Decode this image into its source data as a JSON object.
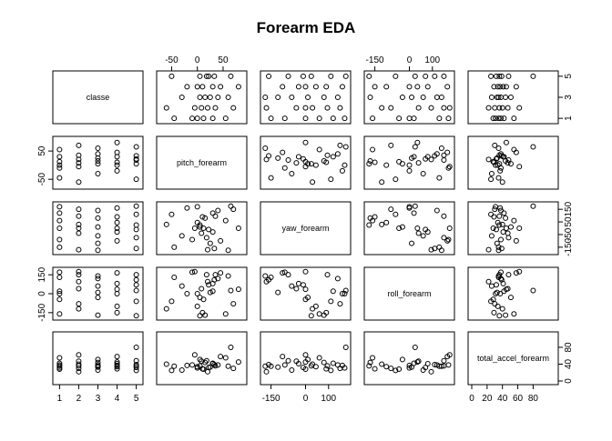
{
  "chart_data": {
    "type": "scatter_matrix",
    "title": "Forearm EDA",
    "color": "#000000",
    "variables": [
      {
        "name": "classe",
        "lim": [
          0.84,
          5.16
        ],
        "xticks": [
          1,
          2,
          3,
          4,
          5
        ],
        "yticks": [
          1,
          3,
          5
        ],
        "values": [
          1,
          1,
          1,
          1,
          1,
          1,
          2,
          2,
          2,
          2,
          2,
          2,
          3,
          3,
          3,
          3,
          3,
          3,
          4,
          4,
          4,
          4,
          4,
          4,
          5,
          5,
          5,
          5,
          5,
          5
        ]
      },
      {
        "name": "pitch_forearm",
        "lim": [
          -72,
          89
        ],
        "xticks": [
          -50,
          0,
          50
        ],
        "yticks": [
          -50,
          50
        ],
        "values": [
          -45,
          12,
          30,
          -10,
          55,
          0,
          20,
          -60,
          35,
          8,
          70,
          -5,
          25,
          15,
          -30,
          40,
          5,
          60,
          10,
          30,
          -20,
          45,
          0,
          80,
          33,
          -50,
          18,
          5,
          65,
          22
        ]
      },
      {
        "name": "yaw_forearm",
        "lim": [
          -180,
          180
        ],
        "xticks": [
          -150,
          0,
          100
        ],
        "yticks": [
          -150,
          -50,
          50,
          150
        ],
        "values": [
          -150,
          0,
          120,
          -90,
          60,
          170,
          -170,
          30,
          95,
          -40,
          150,
          0,
          -120,
          80,
          -60,
          140,
          10,
          -175,
          90,
          -30,
          160,
          -100,
          45,
          0,
          -160,
          110,
          -75,
          25,
          175,
          -10
        ]
      },
      {
        "name": "roll_forearm",
        "lim": [
          -180,
          180
        ],
        "xticks": [
          -150,
          0,
          100
        ],
        "yticks": [
          -150,
          0,
          150
        ],
        "values": [
          130,
          -45,
          20,
          170,
          -160,
          0,
          95,
          -120,
          150,
          40,
          -80,
          175,
          10,
          -170,
          60,
          120,
          -30,
          140,
          -150,
          80,
          0,
          165,
          -100,
          35,
          110,
          -60,
          150,
          -175,
          25,
          70
        ]
      },
      {
        "name": "total_accel_forearm",
        "lim": [
          0,
          108
        ],
        "xticks": [
          0,
          20,
          40,
          60,
          80
        ],
        "yticks": [
          0,
          40,
          80
        ],
        "values": [
          35,
          28,
          42,
          38,
          55,
          31,
          22,
          40,
          36,
          47,
          30,
          62,
          33,
          44,
          26,
          38,
          51,
          35,
          29,
          41,
          37,
          58,
          34,
          45,
          39,
          25,
          48,
          36,
          80,
          32
        ]
      }
    ]
  }
}
